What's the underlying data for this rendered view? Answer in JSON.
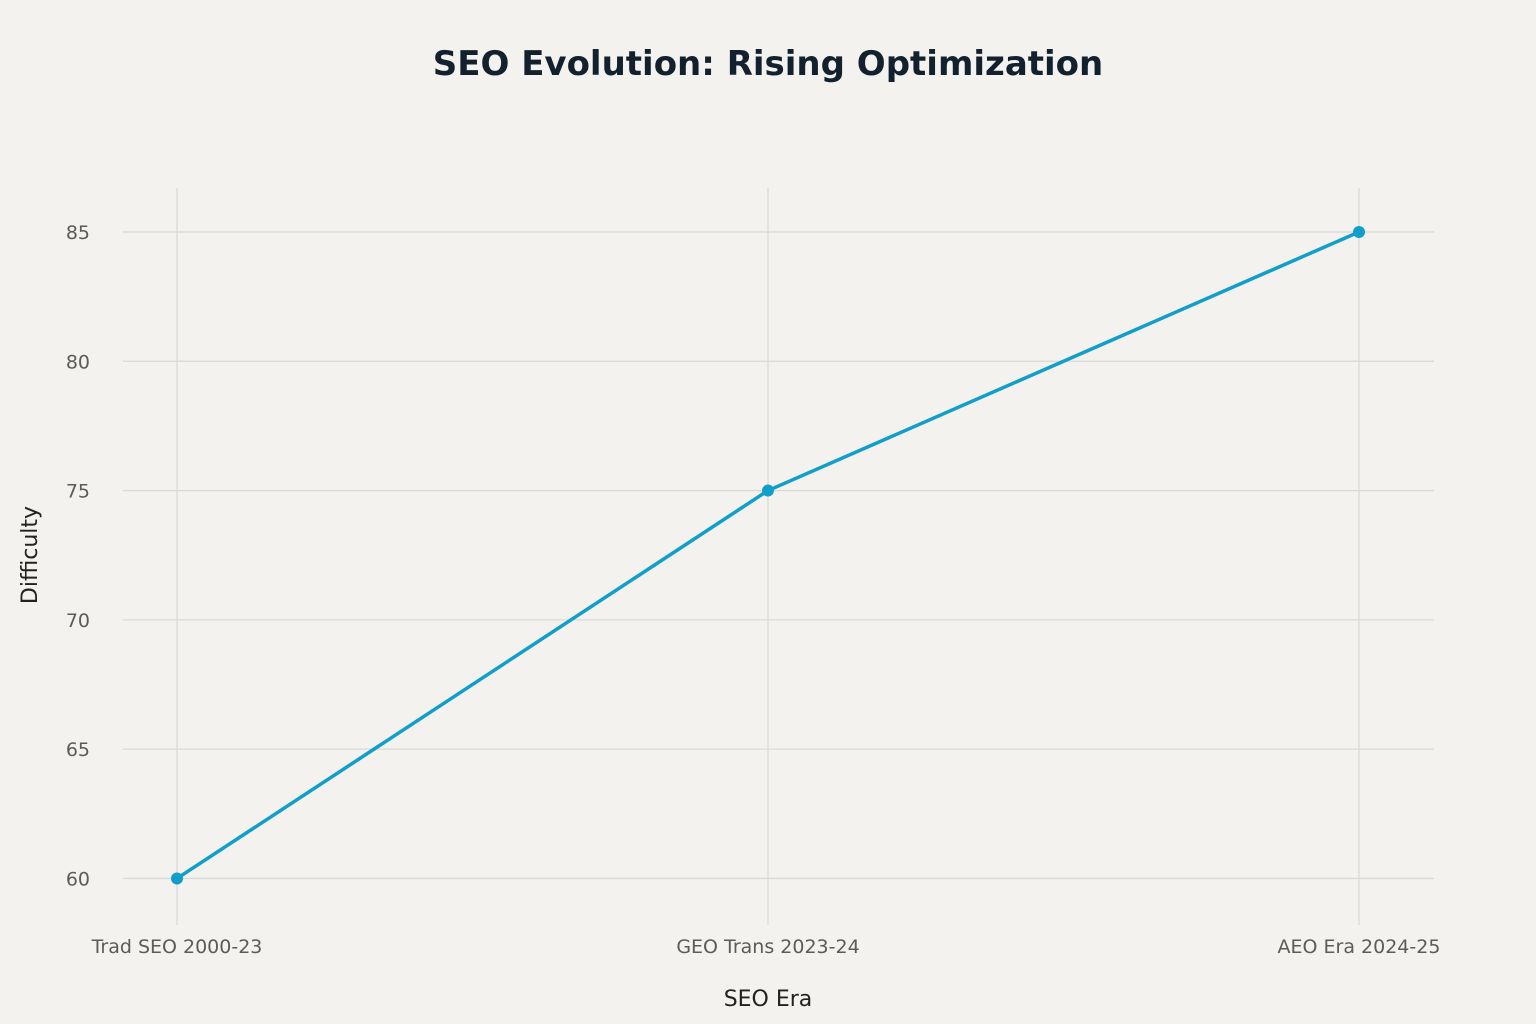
{
  "chart_data": {
    "type": "line",
    "title": "SEO Evolution: Rising Optimization",
    "xlabel": "SEO Era",
    "ylabel": "Difficulty",
    "categories": [
      "Trad SEO 2000-23",
      "GEO Trans 2023-24",
      "AEO Era 2024-25"
    ],
    "series": [
      {
        "name": "Difficulty",
        "values": [
          60,
          75,
          85
        ]
      }
    ],
    "ylim": [
      58.2,
      86.7
    ],
    "yticks": [
      60,
      65,
      70,
      75,
      80,
      85
    ],
    "grid": true,
    "line_color": "#119ec9",
    "background": "#f3f2ef"
  }
}
